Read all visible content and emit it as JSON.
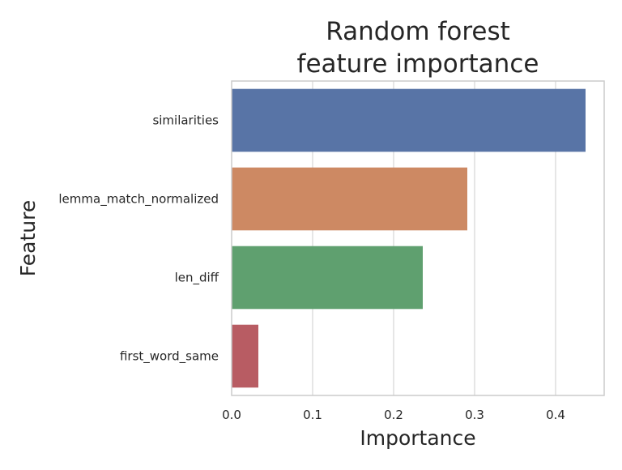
{
  "chart_data": {
    "type": "bar",
    "orientation": "horizontal",
    "title_lines": [
      "Random forest",
      "feature importance"
    ],
    "xlabel": "Importance",
    "ylabel": "Feature",
    "categories": [
      "similarities",
      "lemma_match_normalized",
      "len_diff",
      "first_word_same"
    ],
    "values": [
      0.437,
      0.291,
      0.236,
      0.033
    ],
    "colors": [
      "#5874a6",
      "#cd8963",
      "#5fa06f",
      "#b85c63"
    ],
    "xlim": [
      0,
      0.46
    ],
    "xticks": [
      0.0,
      0.1,
      0.2,
      0.3,
      0.4
    ],
    "xtick_labels": [
      "0.0",
      "0.1",
      "0.2",
      "0.3",
      "0.4"
    ],
    "grid": true
  }
}
